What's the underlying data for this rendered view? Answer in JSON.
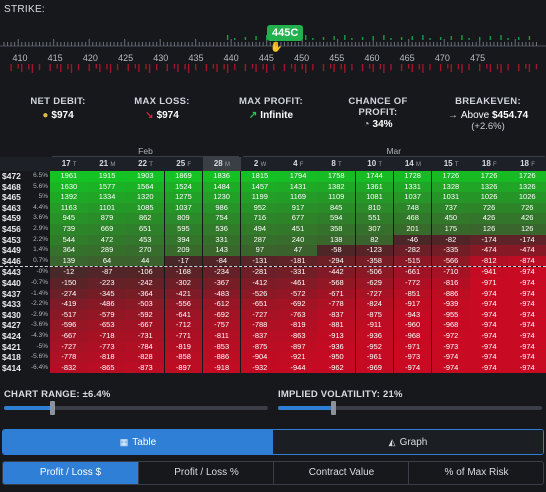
{
  "strike_selector": {
    "label": "STRIKE:",
    "current_price_label": "445C",
    "ticks": [
      "410",
      "415",
      "420",
      "425",
      "430",
      "435",
      "440",
      "445",
      "450",
      "455",
      "460",
      "465",
      "470",
      "475"
    ]
  },
  "summary": {
    "net_debit": {
      "label": "NET DEBIT:",
      "value": "$974",
      "icon": "coins-icon"
    },
    "max_loss": {
      "label": "MAX LOSS:",
      "value": "$974",
      "icon": "arrow-down-icon"
    },
    "max_profit": {
      "label": "MAX PROFIT:",
      "value": "Infinite",
      "icon": "arrow-up-icon"
    },
    "chance_of_profit": {
      "label_line1": "CHANCE OF",
      "label_line2": "PROFIT:",
      "value": "34%",
      "icon": "pie-icon"
    },
    "breakeven": {
      "label": "BREAKEVEN:",
      "value_prefix": "Above",
      "value": "$454.74",
      "sub": "(+2.6%)"
    }
  },
  "table": {
    "months": [
      {
        "label": "Feb",
        "start": 0,
        "end": 8
      },
      {
        "label": "Mar",
        "start": 9,
        "end": 19
      }
    ],
    "dates": [
      {
        "day": "17",
        "dow": "T"
      },
      {
        "day": "21",
        "dow": "M"
      },
      {
        "day": "22",
        "dow": "T"
      },
      {
        "day": "25",
        "dow": "F"
      },
      {
        "day": "28",
        "dow": "M"
      },
      {
        "day": "2",
        "dow": "W"
      },
      {
        "day": "4",
        "dow": "F"
      },
      {
        "day": "8",
        "dow": "T"
      },
      {
        "day": "10",
        "dow": "T"
      },
      {
        "day": "14",
        "dow": "M"
      },
      {
        "day": "15",
        "dow": "T"
      },
      {
        "day": "18",
        "dow": "F"
      },
      {
        "day": "18",
        "dow": "F"
      }
    ],
    "rows": [
      {
        "strike": "$472",
        "pct": "6.5%",
        "values": [
          "1961",
          "1915",
          "1903",
          "1869",
          "1836",
          "1815",
          "1794",
          "1758",
          "1744",
          "1728",
          "1726",
          "1726",
          "1726"
        ]
      },
      {
        "strike": "$468",
        "pct": "5.6%",
        "values": [
          "1630",
          "1577",
          "1564",
          "1524",
          "1484",
          "1457",
          "1431",
          "1382",
          "1361",
          "1331",
          "1328",
          "1326",
          "1326"
        ]
      },
      {
        "strike": "$465",
        "pct": "5%",
        "values": [
          "1392",
          "1334",
          "1320",
          "1275",
          "1230",
          "1199",
          "1169",
          "1109",
          "1081",
          "1037",
          "1031",
          "1026",
          "1026"
        ]
      },
      {
        "strike": "$463",
        "pct": "4.4%",
        "values": [
          "1163",
          "1101",
          "1085",
          "1037",
          "986",
          "952",
          "917",
          "845",
          "810",
          "748",
          "737",
          "726",
          "726"
        ]
      },
      {
        "strike": "$459",
        "pct": "3.6%",
        "values": [
          "945",
          "879",
          "862",
          "809",
          "754",
          "716",
          "677",
          "594",
          "551",
          "468",
          "450",
          "426",
          "426"
        ]
      },
      {
        "strike": "$456",
        "pct": "2.9%",
        "values": [
          "739",
          "669",
          "651",
          "595",
          "536",
          "494",
          "451",
          "358",
          "307",
          "201",
          "175",
          "126",
          "126"
        ]
      },
      {
        "strike": "$453",
        "pct": "2.2%",
        "values": [
          "544",
          "472",
          "453",
          "394",
          "331",
          "287",
          "240",
          "138",
          "82",
          "-46",
          "-82",
          "-174",
          "-174"
        ]
      },
      {
        "strike": "$449",
        "pct": "1.4%",
        "values": [
          "364",
          "289",
          "270",
          "209",
          "143",
          "97",
          "47",
          "-58",
          "-123",
          "-282",
          "-335",
          "-474",
          "-474"
        ]
      },
      {
        "strike": "$446",
        "pct": "0.7%",
        "values": [
          "139",
          "64",
          "44",
          "-17",
          "-84",
          "-131",
          "-181",
          "-294",
          "-358",
          "-515",
          "-566",
          "-812",
          "-874"
        ]
      },
      {
        "strike": "$443",
        "pct": "-0%",
        "values": [
          "-12",
          "-87",
          "-106",
          "-168",
          "-234",
          "-281",
          "-331",
          "-442",
          "-506",
          "-661",
          "-710",
          "-941",
          "-974"
        ]
      },
      {
        "strike": "$440",
        "pct": "-0.7%",
        "values": [
          "-150",
          "-223",
          "-242",
          "-302",
          "-367",
          "-412",
          "-461",
          "-568",
          "-629",
          "-772",
          "-816",
          "-971",
          "-974"
        ]
      },
      {
        "strike": "$437",
        "pct": "-1.4%",
        "values": [
          "-274",
          "-345",
          "-364",
          "-421",
          "-483",
          "-526",
          "-572",
          "-671",
          "-727",
          "-851",
          "-886",
          "-974",
          "-974"
        ]
      },
      {
        "strike": "$433",
        "pct": "-2.2%",
        "values": [
          "-419",
          "-486",
          "-503",
          "-556",
          "-612",
          "-651",
          "-692",
          "-778",
          "-824",
          "-917",
          "-939",
          "-974",
          "-974"
        ]
      },
      {
        "strike": "$430",
        "pct": "-2.9%",
        "values": [
          "-517",
          "-579",
          "-592",
          "-641",
          "-692",
          "-727",
          "-763",
          "-837",
          "-875",
          "-943",
          "-955",
          "-974",
          "-974"
        ]
      },
      {
        "strike": "$427",
        "pct": "-3.6%",
        "values": [
          "-596",
          "-653",
          "-667",
          "-712",
          "-757",
          "-788",
          "-819",
          "-881",
          "-911",
          "-960",
          "-968",
          "-974",
          "-974"
        ]
      },
      {
        "strike": "$424",
        "pct": "-4.3%",
        "values": [
          "-667",
          "-718",
          "-731",
          "-771",
          "-811",
          "-837",
          "-863",
          "-913",
          "-936",
          "-968",
          "-972",
          "-974",
          "-974"
        ]
      },
      {
        "strike": "$421",
        "pct": "-5%",
        "values": [
          "-727",
          "-773",
          "-784",
          "-819",
          "-853",
          "-875",
          "-897",
          "-936",
          "-952",
          "-971",
          "-973",
          "-974",
          "-974"
        ]
      },
      {
        "strike": "$418",
        "pct": "-5.6%",
        "values": [
          "-778",
          "-818",
          "-828",
          "-858",
          "-886",
          "-904",
          "-921",
          "-950",
          "-961",
          "-973",
          "-974",
          "-974",
          "-974"
        ]
      },
      {
        "strike": "$414",
        "pct": "-6.4%",
        "values": [
          "-832",
          "-865",
          "-873",
          "-897",
          "-918",
          "-932",
          "-944",
          "-962",
          "-969",
          "-974",
          "-974",
          "-974",
          "-974"
        ]
      }
    ]
  },
  "chart_range": {
    "label": "CHART RANGE: ±6.4%",
    "fraction": 0.18
  },
  "implied_volatility": {
    "label": "IMPLIED VOLATILITY: 21%",
    "fraction": 0.21
  },
  "view_toggle": {
    "table_label": "Table",
    "graph_label": "Graph",
    "active": "table"
  },
  "metric_tabs": {
    "tabs": [
      "Profit / Loss $",
      "Profit / Loss %",
      "Contract Value",
      "% of Max Risk"
    ],
    "active": 0
  },
  "colors": {
    "accent": "#2f7fd6",
    "profit": "#22b14c",
    "loss": "#c0112c"
  }
}
